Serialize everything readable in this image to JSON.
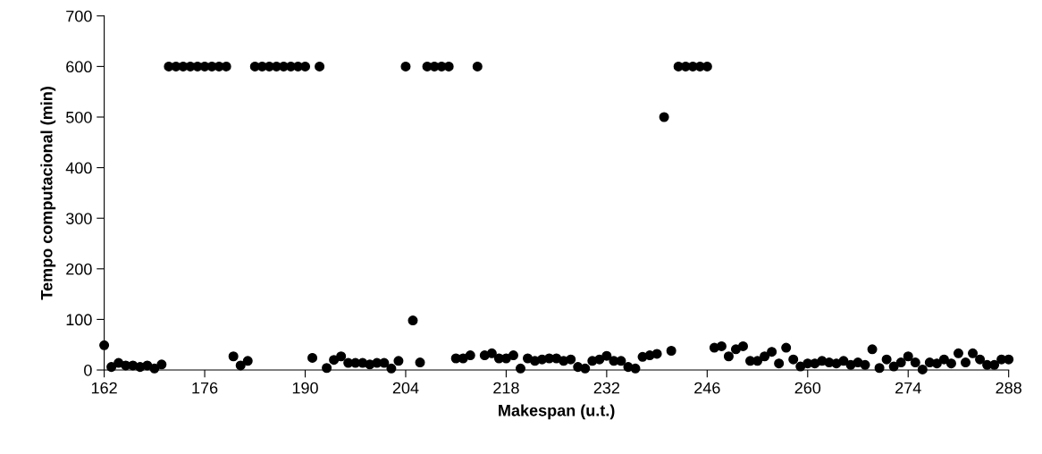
{
  "chart_data": {
    "type": "scatter",
    "xlabel": "Makespan (u.t.)",
    "ylabel": "Tempo computacional (min)",
    "x": [
      162,
      163,
      164,
      165,
      166,
      167,
      168,
      169,
      170,
      171,
      172,
      173,
      174,
      175,
      176,
      177,
      178,
      179,
      180,
      181,
      182,
      183,
      184,
      185,
      186,
      187,
      188,
      189,
      190,
      191,
      192,
      193,
      194,
      195,
      196,
      197,
      198,
      199,
      200,
      201,
      202,
      203,
      204,
      205,
      206,
      207,
      208,
      209,
      210,
      211,
      212,
      213,
      214,
      215,
      216,
      217,
      218,
      219,
      220,
      221,
      222,
      223,
      224,
      225,
      226,
      227,
      228,
      229,
      230,
      231,
      232,
      233,
      234,
      235,
      236,
      237,
      238,
      239,
      240,
      241,
      242,
      243,
      244,
      245,
      246,
      247,
      248,
      249,
      250,
      251,
      252,
      253,
      254,
      255,
      256,
      257,
      258,
      259,
      260,
      261,
      262,
      263,
      264,
      265,
      266,
      267,
      268,
      269,
      270,
      271,
      272,
      273,
      274,
      275,
      276,
      277,
      278,
      279,
      280,
      281,
      282,
      283,
      284,
      285,
      286,
      287,
      288
    ],
    "series": [
      {
        "color": "#000000",
        "values": [
          49,
          6,
          14,
          9,
          9,
          6,
          9,
          3,
          11,
          600,
          600,
          600,
          600,
          600,
          600,
          600,
          600,
          600,
          27,
          9,
          18,
          600,
          600,
          600,
          600,
          600,
          600,
          600,
          600,
          24,
          600,
          4,
          20,
          27,
          14,
          14,
          14,
          11,
          14,
          14,
          3,
          18,
          600,
          98,
          15,
          600,
          600,
          600,
          600,
          23,
          23,
          29,
          600,
          29,
          33,
          23,
          23,
          29,
          3,
          23,
          18,
          21,
          23,
          23,
          18,
          21,
          6,
          3,
          18,
          21,
          28,
          18,
          18,
          6,
          3,
          26,
          29,
          32,
          500,
          38,
          600,
          600,
          600,
          600,
          600,
          44,
          47,
          27,
          41,
          47,
          18,
          18,
          27,
          36,
          13,
          44,
          21,
          7,
          13,
          13,
          18,
          15,
          13,
          18,
          10,
          15,
          10,
          41,
          4,
          21,
          7,
          15,
          27,
          15,
          1,
          15,
          13,
          21,
          13,
          33,
          15,
          33,
          21,
          10,
          10,
          21,
          21
        ]
      }
    ],
    "xlim": [
      162,
      288
    ],
    "xticks": [
      162,
      176,
      190,
      204,
      218,
      232,
      246,
      260,
      274,
      288
    ],
    "ylim": [
      0,
      700
    ],
    "yticks": [
      0,
      100,
      200,
      300,
      400,
      500,
      600,
      700
    ],
    "marker": "circle",
    "grid": false,
    "legend": false
  }
}
